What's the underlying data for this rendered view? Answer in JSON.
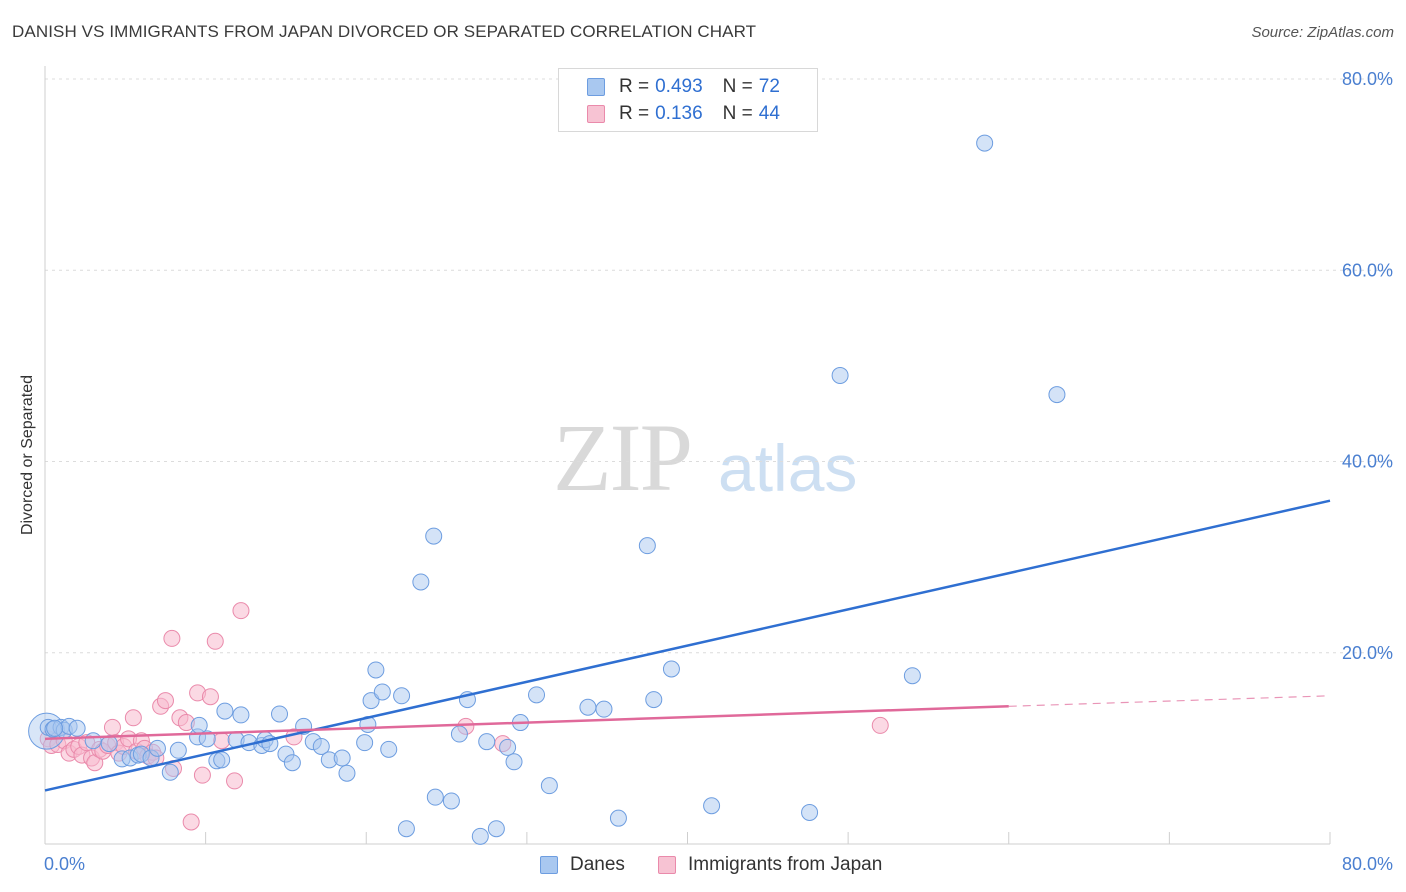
{
  "title": "DANISH VS IMMIGRANTS FROM JAPAN DIVORCED OR SEPARATED CORRELATION CHART",
  "source": "Source: ZipAtlas.com",
  "watermark": {
    "zip": "ZIP",
    "atlas": "atlas"
  },
  "legend": {
    "r_label": "R =",
    "n_label": "N =",
    "rows": [
      {
        "r": "0.493",
        "n": "72",
        "color": "#a9c8f0",
        "border": "#6d9de0"
      },
      {
        "r": "0.136",
        "n": "44",
        "color": "#f7c3d3",
        "border": "#ea8aab"
      }
    ]
  },
  "bottom_legend": [
    {
      "label": "Danes",
      "color": "#a9c8f0",
      "border": "#6d9de0"
    },
    {
      "label": "Immigrants from Japan",
      "color": "#f7c3d3",
      "border": "#ea8aab"
    }
  ],
  "chart_data": {
    "type": "scatter",
    "title": "DANISH VS IMMIGRANTS FROM JAPAN DIVORCED OR SEPARATED CORRELATION CHART",
    "xlabel": "",
    "ylabel": "Divorced or Separated",
    "xlim": [
      0,
      80
    ],
    "ylim": [
      0,
      80
    ],
    "x_tick_labels": [
      "0.0%",
      "80.0%"
    ],
    "y_tick_values": [
      20,
      40,
      60,
      80
    ],
    "y_tick_labels": [
      "20.0%",
      "40.0%",
      "60.0%",
      "80.0%"
    ],
    "grid": true,
    "colors": {
      "danes": "#2f6fd1",
      "japan": "#e0699a"
    },
    "series": [
      {
        "name": "Danes",
        "r": 0.493,
        "n": 72,
        "trend": {
          "x": [
            0,
            80
          ],
          "y": [
            5.6,
            35.9
          ]
        },
        "points": [
          [
            0.2,
            12.2
          ],
          [
            0.5,
            12.0
          ],
          [
            1.0,
            12.2
          ],
          [
            1.2,
            11.9
          ],
          [
            1.5,
            12.3
          ],
          [
            2.0,
            12.1
          ],
          [
            3.0,
            10.8
          ],
          [
            4.0,
            10.5
          ],
          [
            4.8,
            8.9
          ],
          [
            5.3,
            9.0
          ],
          [
            5.8,
            9.3
          ],
          [
            6.0,
            9.4
          ],
          [
            6.6,
            9.0
          ],
          [
            7.0,
            10.0
          ],
          [
            7.8,
            7.5
          ],
          [
            8.3,
            9.8
          ],
          [
            9.5,
            11.2
          ],
          [
            9.6,
            12.4
          ],
          [
            10.1,
            11.0
          ],
          [
            10.7,
            8.7
          ],
          [
            11.0,
            8.8
          ],
          [
            11.2,
            13.9
          ],
          [
            11.9,
            10.9
          ],
          [
            12.2,
            13.5
          ],
          [
            12.7,
            10.6
          ],
          [
            13.5,
            10.3
          ],
          [
            13.7,
            10.9
          ],
          [
            14.0,
            10.5
          ],
          [
            14.6,
            13.6
          ],
          [
            15.0,
            9.4
          ],
          [
            15.4,
            8.5
          ],
          [
            16.1,
            12.3
          ],
          [
            16.7,
            10.7
          ],
          [
            17.2,
            10.2
          ],
          [
            17.7,
            8.8
          ],
          [
            18.5,
            9.0
          ],
          [
            18.8,
            7.4
          ],
          [
            20.3,
            15.0
          ],
          [
            19.9,
            10.6
          ],
          [
            20.1,
            12.5
          ],
          [
            20.6,
            18.2
          ],
          [
            21.0,
            15.9
          ],
          [
            21.4,
            9.9
          ],
          [
            22.2,
            15.5
          ],
          [
            23.4,
            27.4
          ],
          [
            24.2,
            32.2
          ],
          [
            24.3,
            4.9
          ],
          [
            25.3,
            4.5
          ],
          [
            22.5,
            1.6
          ],
          [
            25.8,
            11.5
          ],
          [
            26.3,
            15.1
          ],
          [
            27.1,
            0.8
          ],
          [
            28.1,
            1.6
          ],
          [
            27.5,
            10.7
          ],
          [
            28.8,
            10.1
          ],
          [
            29.2,
            8.6
          ],
          [
            29.6,
            12.7
          ],
          [
            30.6,
            15.6
          ],
          [
            31.4,
            6.1
          ],
          [
            33.8,
            14.3
          ],
          [
            34.8,
            14.1
          ],
          [
            35.7,
            2.7
          ],
          [
            37.5,
            31.2
          ],
          [
            37.9,
            15.1
          ],
          [
            39.0,
            18.3
          ],
          [
            41.5,
            4.0
          ],
          [
            47.6,
            3.3
          ],
          [
            49.5,
            49.0
          ],
          [
            54.0,
            17.6
          ],
          [
            58.5,
            73.3
          ],
          [
            63.0,
            47.0
          ],
          [
            0.6,
            12.1
          ]
        ]
      },
      {
        "name": "Immigrants from Japan",
        "r": 0.136,
        "n": 44,
        "trend": {
          "x": [
            0,
            60
          ],
          "y": [
            11.0,
            14.4
          ]
        },
        "trend_dashed": {
          "x": [
            60,
            80
          ],
          "y": [
            14.4,
            15.5
          ]
        },
        "points": [
          [
            0.2,
            11.0
          ],
          [
            0.4,
            10.3
          ],
          [
            0.8,
            10.4
          ],
          [
            1.2,
            10.8
          ],
          [
            1.5,
            9.5
          ],
          [
            1.8,
            9.9
          ],
          [
            2.1,
            10.2
          ],
          [
            2.3,
            9.3
          ],
          [
            2.6,
            10.6
          ],
          [
            2.9,
            9.0
          ],
          [
            3.1,
            8.5
          ],
          [
            3.4,
            9.9
          ],
          [
            3.6,
            9.7
          ],
          [
            3.9,
            10.3
          ],
          [
            4.2,
            12.2
          ],
          [
            4.4,
            10.6
          ],
          [
            4.6,
            9.5
          ],
          [
            4.9,
            10.2
          ],
          [
            5.2,
            11.0
          ],
          [
            5.5,
            13.2
          ],
          [
            5.7,
            9.7
          ],
          [
            6.0,
            10.8
          ],
          [
            6.2,
            10.0
          ],
          [
            6.4,
            9.2
          ],
          [
            6.7,
            9.6
          ],
          [
            6.9,
            9.0
          ],
          [
            7.2,
            14.4
          ],
          [
            7.5,
            15.0
          ],
          [
            8.0,
            7.9
          ],
          [
            8.4,
            13.2
          ],
          [
            8.8,
            12.7
          ],
          [
            9.1,
            2.3
          ],
          [
            9.5,
            15.8
          ],
          [
            9.8,
            7.2
          ],
          [
            10.3,
            15.4
          ],
          [
            10.6,
            21.2
          ],
          [
            11.0,
            10.8
          ],
          [
            11.8,
            6.6
          ],
          [
            12.2,
            24.4
          ],
          [
            7.9,
            21.5
          ],
          [
            15.5,
            11.2
          ],
          [
            26.2,
            12.3
          ],
          [
            28.5,
            10.5
          ],
          [
            52.0,
            12.4
          ]
        ]
      }
    ]
  }
}
